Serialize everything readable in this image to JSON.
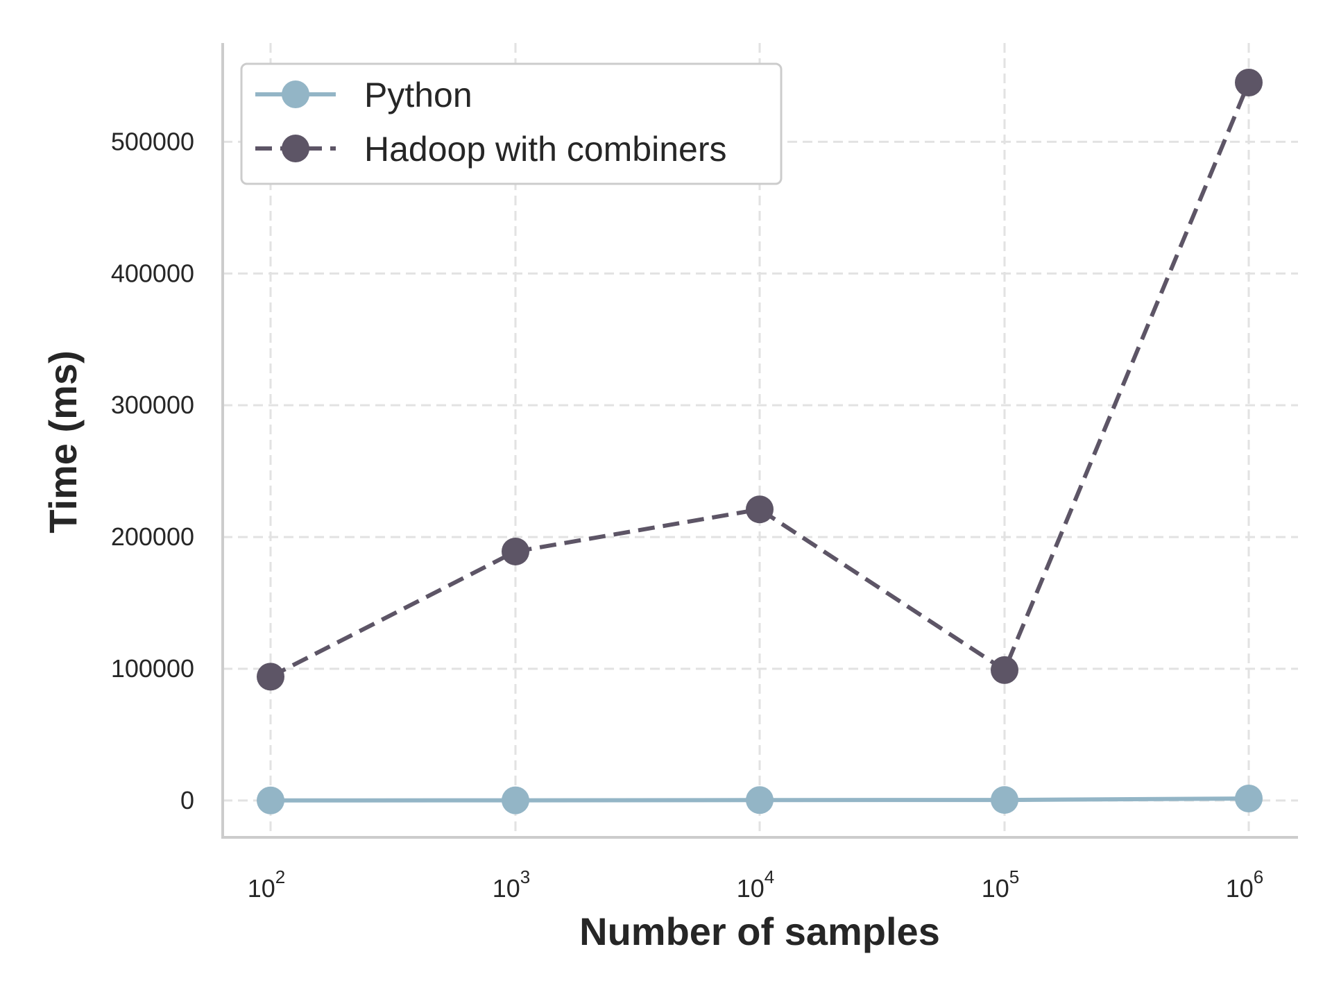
{
  "chart_data": {
    "type": "line",
    "xlabel": "Number of samples",
    "ylabel": "Time (ms)",
    "x_scale": "log",
    "x": [
      100,
      1000,
      10000,
      100000,
      1000000
    ],
    "x_tick_labels": [
      {
        "base": "10",
        "exp": "2"
      },
      {
        "base": "10",
        "exp": "3"
      },
      {
        "base": "10",
        "exp": "4"
      },
      {
        "base": "10",
        "exp": "5"
      },
      {
        "base": "10",
        "exp": "6"
      }
    ],
    "y_ticks": [
      0,
      100000,
      200000,
      300000,
      400000,
      500000
    ],
    "y_tick_labels": [
      "0",
      "100000",
      "200000",
      "300000",
      "400000",
      "500000"
    ],
    "ylim": [
      -28000,
      575000
    ],
    "grid": true,
    "grid_style": "dashed",
    "legend_position": "top-left",
    "series": [
      {
        "name": "Python",
        "color": "#93b5c6",
        "line_style": "solid",
        "marker": "circle",
        "values": [
          50,
          100,
          300,
          400,
          1500
        ]
      },
      {
        "name": "Hadoop with combiners",
        "color": "#5d5566",
        "line_style": "dashed",
        "marker": "circle",
        "values": [
          94000,
          189000,
          221000,
          99000,
          545000
        ]
      }
    ]
  }
}
